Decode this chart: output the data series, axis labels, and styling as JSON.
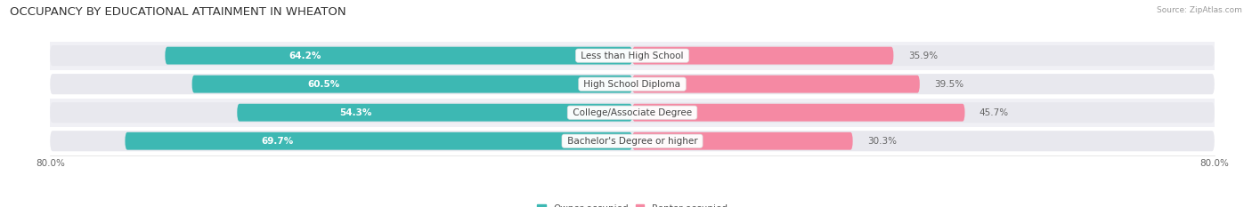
{
  "title": "OCCUPANCY BY EDUCATIONAL ATTAINMENT IN WHEATON",
  "source": "Source: ZipAtlas.com",
  "categories": [
    "Less than High School",
    "High School Diploma",
    "College/Associate Degree",
    "Bachelor's Degree or higher"
  ],
  "owner_pct": [
    64.2,
    60.5,
    54.3,
    69.7
  ],
  "renter_pct": [
    35.9,
    39.5,
    45.7,
    30.3
  ],
  "owner_color": "#3db8b3",
  "renter_color": "#f589a3",
  "track_color": "#e8e8ee",
  "axis_min": -80.0,
  "axis_max": 80.0,
  "title_fontsize": 9.5,
  "label_fontsize": 7.5,
  "tick_fontsize": 7.5,
  "bg_color": "#ffffff",
  "row_bg_colors": [
    "#f0f0f5",
    "#ffffff",
    "#f0f0f5",
    "#ffffff"
  ]
}
